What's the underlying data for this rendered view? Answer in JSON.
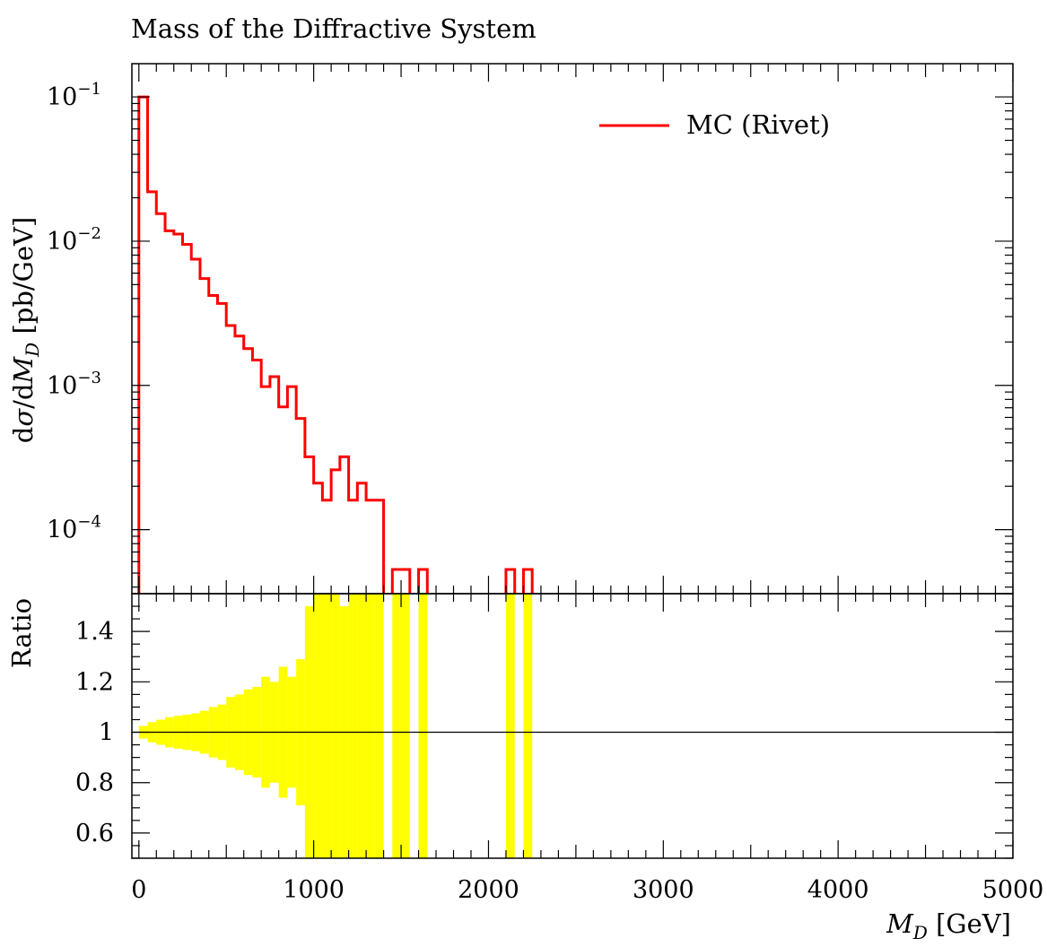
{
  "chart_data": {
    "type": "line",
    "title": "Mass of the Diffractive System",
    "legend": {
      "label": "MC (Rivet)",
      "color": "#ff0000",
      "placement": "top-right"
    },
    "main": {
      "ylabel": "dσ/dM_D [pb/GeV]",
      "yscale": "log",
      "ylim": [
        3.6e-05,
        0.17
      ],
      "yticks": [
        {
          "value": 0.1,
          "label": "10",
          "exp": "−1"
        },
        {
          "value": 0.01,
          "label": "10",
          "exp": "−2"
        },
        {
          "value": 0.001,
          "label": "10",
          "exp": "−3"
        },
        {
          "value": 0.0001,
          "label": "10",
          "exp": "−4"
        }
      ],
      "series": [
        {
          "name": "MC (Rivet)",
          "color": "#ff0000",
          "bin_width": 50,
          "x_start": 0,
          "values": [
            0.1,
            0.022,
            0.0155,
            0.0118,
            0.0112,
            0.0095,
            0.0075,
            0.0055,
            0.0042,
            0.0037,
            0.0026,
            0.0022,
            0.0018,
            0.0015,
            0.00098,
            0.00115,
            0.00071,
            0.00098,
            0.00059,
            0.00032,
            0.00021,
            0.00016,
            0.00026,
            0.00032,
            0.00016,
            0.00021,
            0.00016,
            0.00016,
            0,
            5.3e-05,
            5.3e-05,
            0,
            5.3e-05,
            0,
            0,
            0,
            0,
            0,
            0,
            0,
            0,
            0,
            5.3e-05,
            0,
            5.3e-05,
            0
          ]
        }
      ]
    },
    "ratio": {
      "ylabel": "Ratio",
      "ylim": [
        0.5,
        1.55
      ],
      "yticks": [
        {
          "value": 1.4,
          "label": "1.4"
        },
        {
          "value": 1.2,
          "label": "1.2"
        },
        {
          "value": 1,
          "label": "1"
        },
        {
          "value": 0.8,
          "label": "0.8"
        },
        {
          "value": 0.6,
          "label": "0.6"
        }
      ],
      "band_color": "#ffff00",
      "bin_width": 50,
      "x_start": 0,
      "errors": [
        0.025,
        0.04,
        0.05,
        0.06,
        0.065,
        0.07,
        0.075,
        0.085,
        0.1,
        0.11,
        0.14,
        0.15,
        0.17,
        0.18,
        0.22,
        0.2,
        0.26,
        0.22,
        0.29,
        0.5,
        0.6,
        0.7,
        0.55,
        0.5,
        1.0,
        0.7,
        1.0,
        1.0,
        0,
        1.0,
        1.0,
        0,
        1.0,
        0,
        0,
        0,
        0,
        0,
        0,
        0,
        0,
        0,
        1.0,
        0,
        1.0,
        0
      ]
    },
    "xlabel": "M_D [GeV]",
    "xlim": [
      -40,
      5000
    ],
    "xticks": [
      {
        "value": 0,
        "label": "0"
      },
      {
        "value": 1000,
        "label": "1000"
      },
      {
        "value": 2000,
        "label": "2000"
      },
      {
        "value": 3000,
        "label": "3000"
      },
      {
        "value": 4000,
        "label": "4000"
      },
      {
        "value": 5000,
        "label": "5000"
      }
    ]
  }
}
